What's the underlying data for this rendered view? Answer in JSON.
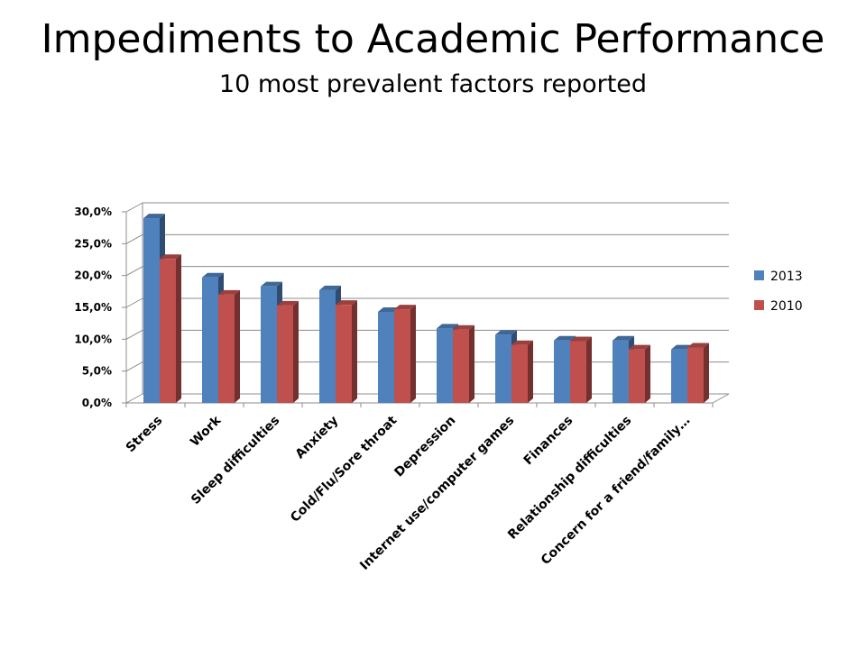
{
  "slide": {
    "title": "Impediments to Academic Performance",
    "subtitle": "10 most prevalent factors reported"
  },
  "chart_data": {
    "type": "bar",
    "style": "3d-clustered-column",
    "categories": [
      "Stress",
      "Work",
      "Sleep difficulties",
      "Anxiety",
      "Cold/Flu/Sore throat",
      "Depression",
      "Internet use/computer games",
      "Finances",
      "Relationship difficulties",
      "Concern for a friend/family…"
    ],
    "series": [
      {
        "name": "2013",
        "color": "#4F81BD",
        "values": [
          0.29,
          0.197,
          0.183,
          0.177,
          0.143,
          0.117,
          0.107,
          0.098,
          0.098,
          0.084
        ]
      },
      {
        "name": "2010",
        "color": "#C0504D",
        "values": [
          0.226,
          0.17,
          0.153,
          0.154,
          0.147,
          0.115,
          0.091,
          0.097,
          0.084,
          0.087
        ]
      }
    ],
    "y_ticks": [
      "0,0%",
      "5,0%",
      "10,0%",
      "15,0%",
      "20,0%",
      "25,0%",
      "30,0%"
    ],
    "ylim": [
      0,
      0.3
    ],
    "grid": true,
    "legend_position": "right",
    "xlabel": "",
    "ylabel": ""
  }
}
